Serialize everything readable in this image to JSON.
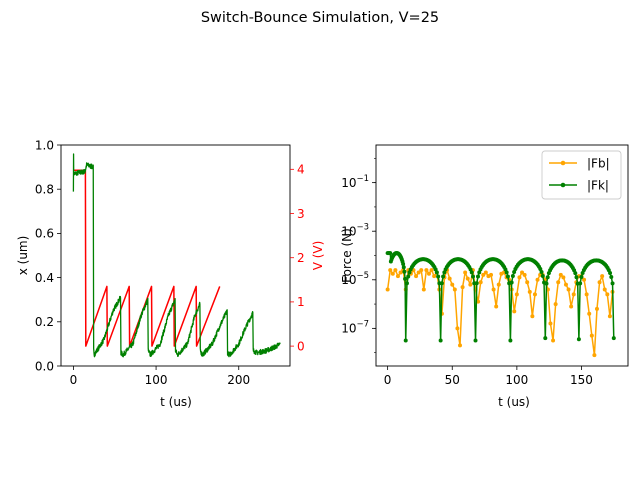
{
  "figure": {
    "suptitle": "Switch-Bounce Simulation, V=25"
  },
  "colors": {
    "x_series": "#008000",
    "v_series": "#ff0000",
    "fb_series": "#ffa500",
    "fk_series": "#008000",
    "axis": "#000000",
    "right_axis": "#ff0000"
  },
  "chart_data": [
    {
      "type": "line",
      "title": "",
      "xlabel": "t (us)",
      "ylabel": "x (um)",
      "y2label": "V (V)",
      "xlim": [
        -15,
        262
      ],
      "ylim": [
        0,
        1.0
      ],
      "y2lim": [
        -0.45,
        4.55
      ],
      "xticks": [
        0,
        100,
        200
      ],
      "yticks": [
        0.0,
        0.2,
        0.4,
        0.6,
        0.8,
        1.0
      ],
      "y2ticks": [
        0,
        1,
        2,
        3,
        4
      ],
      "grid": false,
      "series": [
        {
          "axis": "y2",
          "color": "#ff0000",
          "points": [
            [
              0,
              3.98
            ],
            [
              14.5,
              3.98
            ],
            [
              15,
              0
            ],
            [
              40.5,
              1.35
            ],
            [
              41,
              0
            ],
            [
              67.5,
              1.35
            ],
            [
              68,
              0
            ],
            [
              94.5,
              1.35
            ],
            [
              95,
              0
            ],
            [
              121.5,
              1.35
            ],
            [
              122,
              0
            ],
            [
              148.5,
              1.35
            ],
            [
              149,
              0
            ],
            [
              177,
              1.35
            ]
          ]
        },
        {
          "axis": "y",
          "color": "#008000",
          "noisy": true,
          "points": [
            [
              0,
              0.8
            ],
            [
              0.2,
              0.95
            ],
            [
              0.4,
              0.87
            ],
            [
              14,
              0.88
            ],
            [
              16,
              0.91
            ],
            [
              24,
              0.9
            ],
            [
              24.5,
              0.07
            ],
            [
              25,
              0.05
            ],
            [
              37,
              0.12
            ],
            [
              48,
              0.25
            ],
            [
              57,
              0.31
            ],
            [
              57.5,
              0.06
            ],
            [
              60,
              0.05
            ],
            [
              72,
              0.1
            ],
            [
              82,
              0.23
            ],
            [
              90,
              0.3
            ],
            [
              90.5,
              0.07
            ],
            [
              93,
              0.05
            ],
            [
              105,
              0.1
            ],
            [
              115,
              0.23
            ],
            [
              123,
              0.3
            ],
            [
              123.5,
              0.07
            ],
            [
              126,
              0.05
            ],
            [
              138,
              0.1
            ],
            [
              147,
              0.23
            ],
            [
              153,
              0.28
            ],
            [
              153.5,
              0.07
            ],
            [
              156,
              0.05
            ],
            [
              168,
              0.1
            ],
            [
              177,
              0.18
            ],
            [
              186,
              0.25
            ],
            [
              186.5,
              0.06
            ],
            [
              189,
              0.05
            ],
            [
              200,
              0.1
            ],
            [
              209,
              0.18
            ],
            [
              217,
              0.24
            ],
            [
              217.5,
              0.07
            ],
            [
              222,
              0.06
            ],
            [
              234,
              0.07
            ],
            [
              246,
              0.09
            ],
            [
              250,
              0.1
            ]
          ]
        }
      ]
    },
    {
      "type": "line",
      "title": "",
      "xlabel": "t (us)",
      "ylabel": "Force (N)",
      "yscale": "log",
      "xlim": [
        -9,
        186
      ],
      "ylim_log10": [
        -8.55,
        0.55
      ],
      "xticks": [
        0,
        50,
        100,
        150
      ],
      "yticks": [
        "10^-1",
        "10^-3",
        "10^-5",
        "10^-7"
      ],
      "ytick_exponents": [
        -1,
        -3,
        -5,
        -7
      ],
      "legend_position": "upper right",
      "grid": false,
      "series": [
        {
          "name": "|Fb|",
          "color": "#ffa500",
          "marker": "circle",
          "t": [
            0,
            2,
            4,
            6,
            8,
            10,
            12,
            14,
            16,
            18,
            20,
            22,
            24,
            26,
            28,
            30,
            32,
            34,
            36,
            38,
            40,
            42,
            44,
            46,
            48,
            50,
            52,
            54,
            56,
            58,
            60,
            62,
            64,
            66,
            68,
            70,
            72,
            74,
            76,
            78,
            80,
            82,
            84,
            86,
            88,
            90,
            92,
            94,
            96,
            98,
            100,
            102,
            104,
            106,
            108,
            110,
            112,
            114,
            116,
            118,
            120,
            122,
            124,
            126,
            128,
            130,
            132,
            134,
            136,
            138,
            140,
            142,
            144,
            146,
            148,
            150,
            152,
            154,
            156,
            158,
            160,
            162,
            164,
            166,
            168,
            170,
            172,
            174
          ],
          "log10_values": [
            -5.4,
            -4.6,
            -4.75,
            -4.6,
            -4.85,
            -4.7,
            -4.6,
            -5.4,
            -4.6,
            -4.75,
            -4.6,
            -4.85,
            -4.7,
            -4.6,
            -5.4,
            -4.6,
            -4.75,
            -4.6,
            -4.85,
            -4.7,
            -5.4,
            -6.4,
            -4.9,
            -4.6,
            -4.95,
            -5.2,
            -5.4,
            -7.0,
            -7.7,
            -5.3,
            -4.7,
            -4.95,
            -5.2,
            -4.6,
            -5.4,
            -5.9,
            -5.1,
            -4.8,
            -4.7,
            -4.85,
            -4.8,
            -5.4,
            -6.1,
            -5.2,
            -4.75,
            -4.7,
            -4.9,
            -5.0,
            -5.4,
            -6.3,
            -5.6,
            -4.9,
            -4.7,
            -4.8,
            -5.1,
            -5.5,
            -6.5,
            -5.6,
            -5.0,
            -4.8,
            -4.8,
            -5.0,
            -5.4,
            -6.8,
            -7.5,
            -6.0,
            -5.1,
            -4.8,
            -4.9,
            -5.2,
            -5.4,
            -6.1,
            -5.6,
            -5.1,
            -4.85,
            -4.85,
            -5.0,
            -5.6,
            -6.4,
            -7.3,
            -8.1,
            -6.2,
            -5.1,
            -4.85,
            -5.4,
            -5.6,
            -6.5,
            -5.5
          ]
        },
        {
          "name": "|Fk|",
          "color": "#008000",
          "marker": "circle",
          "bounces": [
            [
              0,
              14
            ],
            [
              14,
              41
            ],
            [
              41,
              68
            ],
            [
              68,
              95
            ],
            [
              95,
              122
            ],
            [
              122,
              148
            ],
            [
              148,
              175
            ]
          ],
          "peak_log10": [
            -3.9,
            -4.15,
            -4.15,
            -4.15,
            -4.15,
            -4.2,
            -4.2
          ],
          "dip_log10": [
            -7.5,
            -7.5,
            -7.5,
            -7.5,
            -7.4,
            -7.45,
            -7.4
          ]
        }
      ]
    }
  ]
}
